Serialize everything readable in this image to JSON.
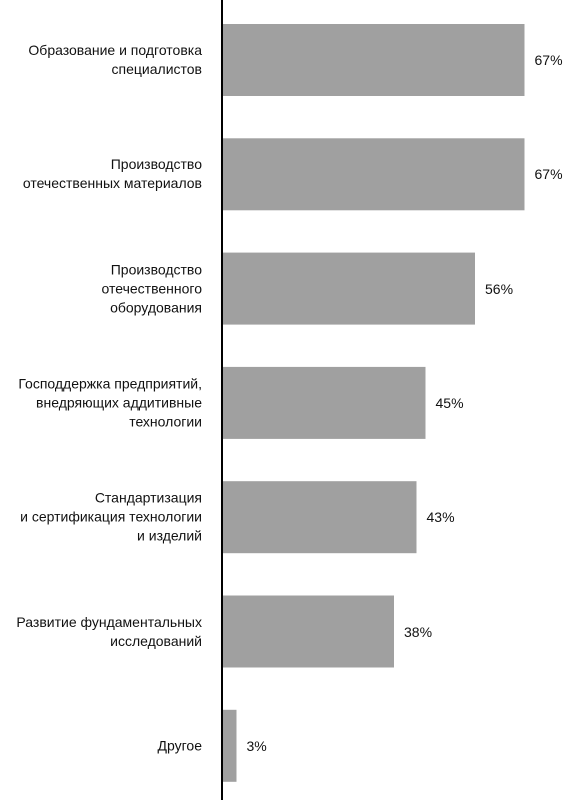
{
  "chart_data": {
    "type": "bar",
    "orientation": "horizontal",
    "categories": [
      "Образование и подготовка\nспециалистов",
      "Производство\nотечественных материалов",
      "Производство\nотечественного\nоборудования",
      "Господдержка предприятий,\nвнедряющих аддитивные\nтехнологии",
      "Стандартизация\nи сертификация технологии\nи изделий",
      "Развитие фундаментальных\nисследований",
      "Другое"
    ],
    "values": [
      67,
      67,
      56,
      45,
      43,
      38,
      3
    ],
    "value_labels": [
      "67%",
      "67%",
      "56%",
      "45%",
      "43%",
      "38%",
      "3%"
    ],
    "color": "#a0a0a0"
  }
}
